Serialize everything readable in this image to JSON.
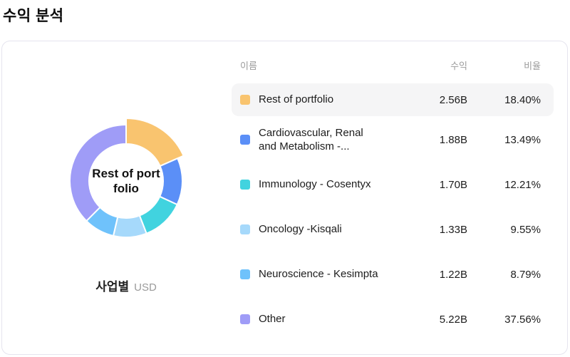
{
  "page": {
    "title": "수익 분석"
  },
  "chart": {
    "center_label": "Rest of portfolio",
    "caption": "사업별",
    "caption_unit": "USD"
  },
  "table": {
    "headers": {
      "name": "이름",
      "revenue": "수익",
      "ratio": "비율"
    }
  },
  "rows": [
    {
      "name": "Rest of portfolio",
      "revenue": "2.56B",
      "ratio": "18.40%",
      "color": "#F9C46F",
      "highlighted": true
    },
    {
      "name": "Cardiovascular, Renal and Metabolism -...",
      "revenue": "1.88B",
      "ratio": "13.49%",
      "color": "#5B8FF7",
      "highlighted": false
    },
    {
      "name": "Immunology - Cosentyx",
      "revenue": "1.70B",
      "ratio": "12.21%",
      "color": "#41D3DF",
      "highlighted": false
    },
    {
      "name": "Oncology -Kisqali",
      "revenue": "1.33B",
      "ratio": "9.55%",
      "color": "#A6D9FB",
      "highlighted": false
    },
    {
      "name": "Neuroscience - Kesimpta",
      "revenue": "1.22B",
      "ratio": "8.79%",
      "color": "#6FC2FB",
      "highlighted": false
    },
    {
      "name": "Other",
      "revenue": "5.22B",
      "ratio": "37.56%",
      "color": "#9F9CF7",
      "highlighted": false
    }
  ],
  "chart_data": {
    "type": "pie",
    "donut": true,
    "title": "수익 분석",
    "categories": [
      "Rest of portfolio",
      "Cardiovascular, Renal and Metabolism -...",
      "Immunology - Cosentyx",
      "Oncology -Kisqali",
      "Neuroscience - Kesimpta",
      "Other"
    ],
    "values": [
      2.56,
      1.88,
      1.7,
      1.33,
      1.22,
      5.22
    ],
    "value_unit": "B USD",
    "percents": [
      18.4,
      13.49,
      12.21,
      9.55,
      8.79,
      37.56
    ],
    "colors": [
      "#F9C46F",
      "#5B8FF7",
      "#41D3DF",
      "#A6D9FB",
      "#6FC2FB",
      "#9F9CF7"
    ],
    "selected_index": 0,
    "selected_label": "Rest of portfolio",
    "inner_radius": 52,
    "outer_radius": 79,
    "selected_outer_radius": 88,
    "start_angle_deg": 0,
    "direction": "clockwise",
    "legend_position": "table-right"
  }
}
